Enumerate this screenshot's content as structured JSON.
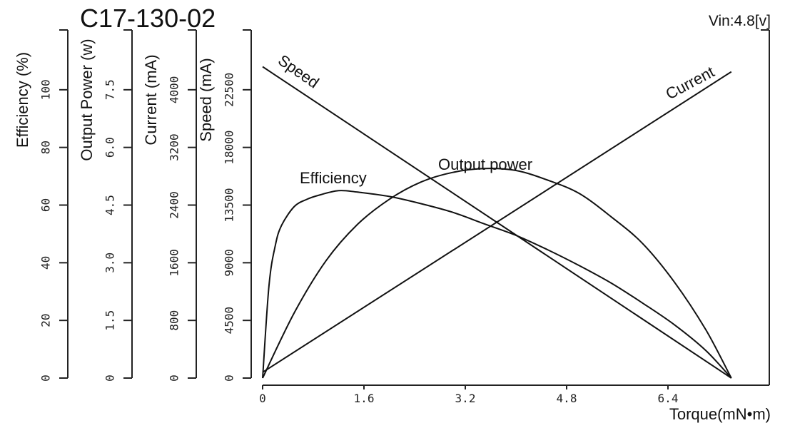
{
  "chart_data": {
    "type": "line",
    "title": "C17-130-02",
    "voltage_label": "Vin:4.8[v]",
    "xlabel": "Torque(mN•m)",
    "xlim": [
      0,
      8.0
    ],
    "x_ticks": [
      "0",
      "1.6",
      "3.2",
      "4.8",
      "6.4"
    ],
    "y_axes": [
      {
        "id": "efficiency",
        "label": "Efficiency (%)",
        "lim": [
          0,
          120
        ],
        "ticks": [
          "0",
          "20",
          "40",
          "60",
          "80",
          "100"
        ]
      },
      {
        "id": "power",
        "label": "Output Power (w)",
        "lim": [
          0,
          9
        ],
        "ticks": [
          "0",
          "1.5",
          "3.0",
          "4.5",
          "6.0",
          "7.5"
        ]
      },
      {
        "id": "current",
        "label": "Current (mA)",
        "lim": [
          0,
          4800
        ],
        "ticks": [
          "0",
          "800",
          "1600",
          "2400",
          "3200",
          "4000"
        ]
      },
      {
        "id": "speed",
        "label": "Speed (mA)",
        "lim": [
          0,
          27000
        ],
        "ticks": [
          "0",
          "4500",
          "9000",
          "13500",
          "18000",
          "22500"
        ]
      }
    ],
    "series": [
      {
        "name": "Speed",
        "axis": "speed",
        "x": [
          0,
          7.4
        ],
        "y": [
          24300,
          0
        ]
      },
      {
        "name": "Current",
        "axis": "current",
        "x": [
          0,
          7.4
        ],
        "y": [
          80,
          4250
        ]
      },
      {
        "name": "Efficiency",
        "axis": "efficiency",
        "x": [
          0,
          0.1,
          0.2,
          0.3,
          0.5,
          0.7,
          0.9,
          1.2,
          1.5,
          2.0,
          2.5,
          3.0,
          3.5,
          4.0,
          4.5,
          5.0,
          5.5,
          6.0,
          6.5,
          7.0,
          7.4
        ],
        "y": [
          0,
          32,
          46,
          53,
          59.5,
          62,
          63.5,
          65,
          64.5,
          63,
          60.5,
          57.5,
          53.5,
          49.5,
          44.5,
          39,
          33,
          26,
          18.5,
          9.5,
          0
        ]
      },
      {
        "name": "Output power",
        "axis": "power",
        "x": [
          0,
          0.5,
          1.0,
          1.5,
          2.0,
          2.5,
          3.0,
          3.5,
          4.0,
          4.5,
          5.0,
          5.5,
          6.0,
          6.5,
          7.0,
          7.4
        ],
        "y": [
          0,
          1.7,
          3.05,
          4.0,
          4.65,
          5.1,
          5.35,
          5.45,
          5.4,
          5.15,
          4.8,
          4.2,
          3.5,
          2.5,
          1.25,
          0
        ]
      }
    ],
    "curve_labels": {
      "speed": "Speed",
      "current": "Current",
      "efficiency": "Efficiency",
      "power": "Output power"
    }
  }
}
